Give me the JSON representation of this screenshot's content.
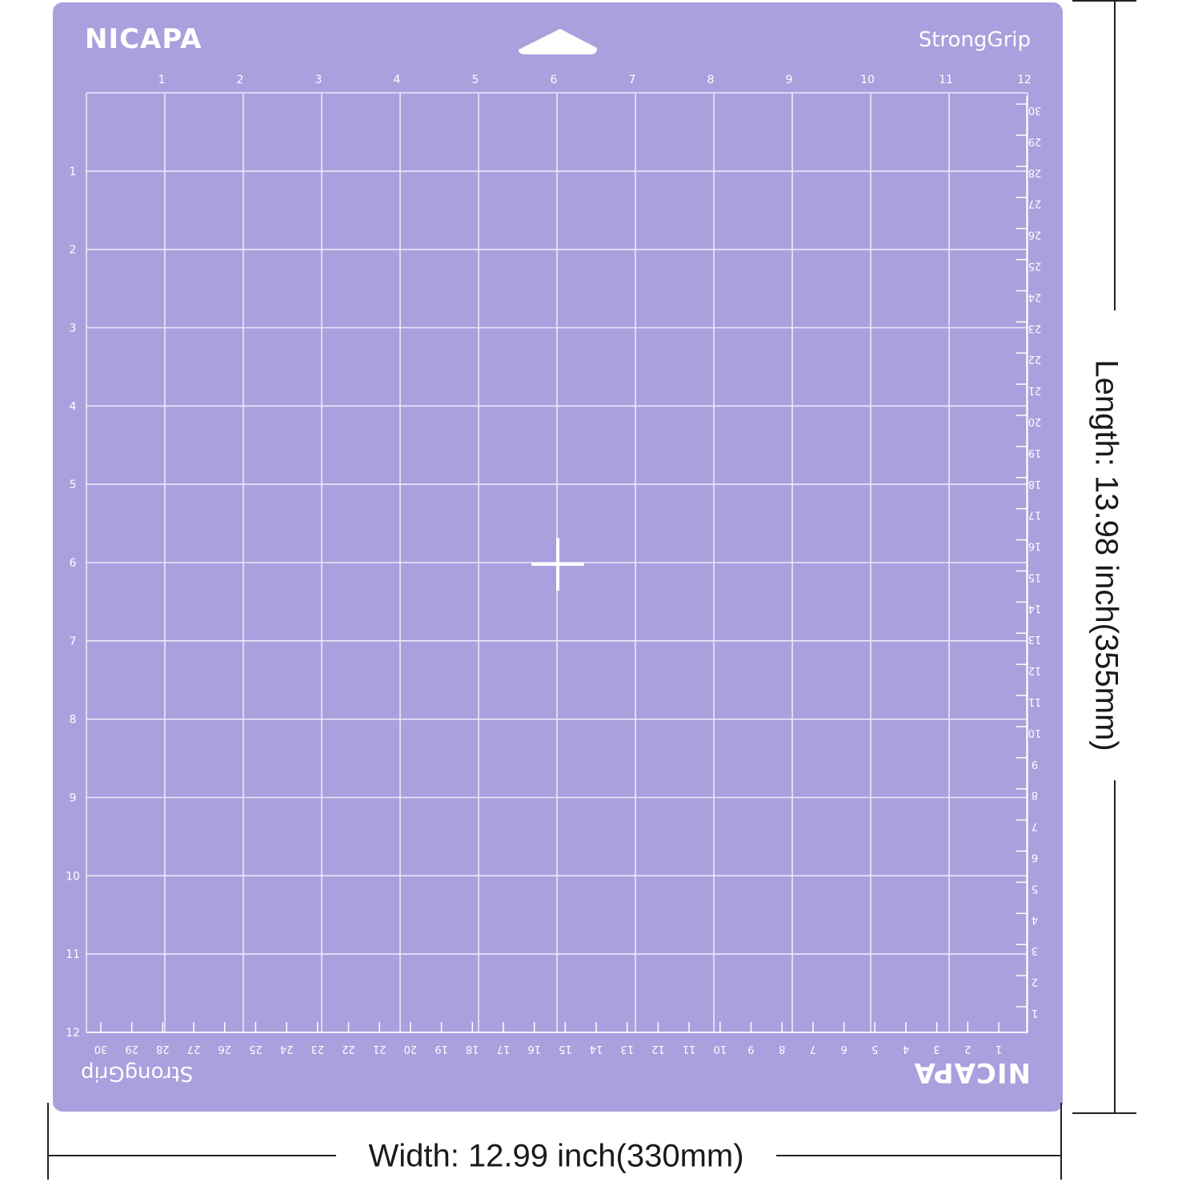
{
  "mat": {
    "brand_top": "NICAPA",
    "brand_bottom": "NICAPA",
    "grip_top": "StrongGrip",
    "grip_bottom": "StrongGrip",
    "color": "#ac9fdd",
    "grid_color": "#ece9f9",
    "text_color": "#ffffff",
    "inch_count": 12,
    "cm_count": 30
  },
  "dimensions": {
    "width_label": "Width: 12.99 inch(330mm)",
    "length_label": "Length: 13.98 inch(355mm)"
  }
}
